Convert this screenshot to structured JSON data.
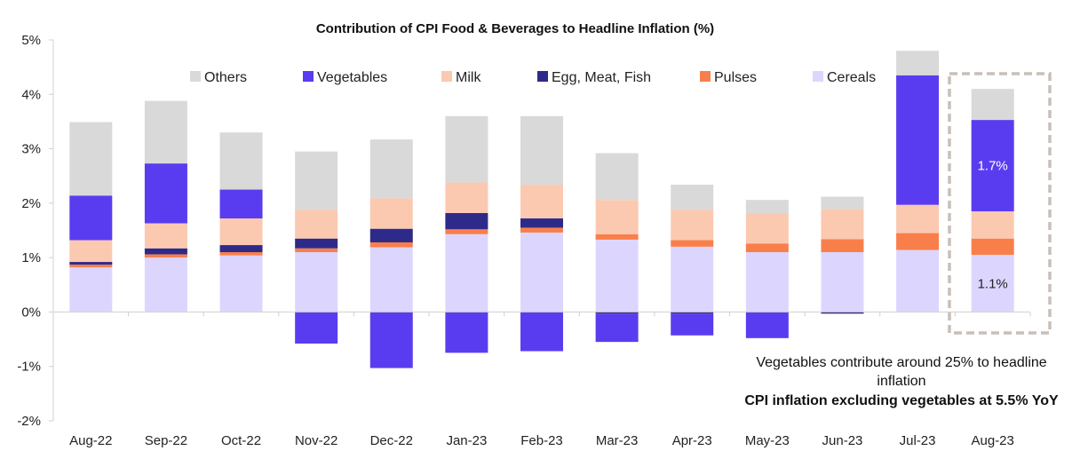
{
  "chart_data": {
    "type": "bar",
    "stacked": true,
    "title": "Contribution of CPI Food & Beverages to Headline Inflation (%)",
    "xlabel": "",
    "ylabel": "",
    "ylim": [
      -2,
      5
    ],
    "yticks": [
      -2,
      -1,
      0,
      1,
      2,
      3,
      4,
      5
    ],
    "ytick_labels": [
      "-2%",
      "-1%",
      "0%",
      "1%",
      "2%",
      "3%",
      "4%",
      "5%"
    ],
    "legend_position": "top",
    "grid": false,
    "categories": [
      "Aug-22",
      "Sep-22",
      "Oct-22",
      "Nov-22",
      "Dec-22",
      "Jan-23",
      "Feb-23",
      "Mar-23",
      "Apr-23",
      "May-23",
      "Jun-23",
      "Jul-23",
      "Aug-23"
    ],
    "series": [
      {
        "name": "Cereals",
        "color": "#dcd6ff",
        "values": [
          0.82,
          1.0,
          1.04,
          1.1,
          1.19,
          1.43,
          1.46,
          1.33,
          1.2,
          1.1,
          1.1,
          1.14,
          1.05
        ]
      },
      {
        "name": "Pulses",
        "color": "#f97f4a",
        "values": [
          0.05,
          0.06,
          0.06,
          0.07,
          0.09,
          0.09,
          0.09,
          0.1,
          0.12,
          0.16,
          0.24,
          0.31,
          0.3
        ]
      },
      {
        "name": "Egg, Meat, Fish",
        "color": "#2e2a8a",
        "values": [
          0.05,
          0.11,
          0.13,
          0.18,
          0.25,
          0.3,
          0.17,
          -0.03,
          -0.03,
          0.0,
          -0.03,
          0.0,
          0.0
        ]
      },
      {
        "name": "Milk",
        "color": "#fbc9b0",
        "values": [
          0.4,
          0.46,
          0.49,
          0.53,
          0.56,
          0.56,
          0.62,
          0.63,
          0.56,
          0.55,
          0.55,
          0.52,
          0.5
        ]
      },
      {
        "name": "Vegetables",
        "color": "#5a3cf0",
        "values": [
          0.82,
          1.1,
          0.53,
          -0.58,
          -1.03,
          -0.75,
          -0.72,
          -0.52,
          -0.4,
          -0.48,
          0.0,
          2.38,
          1.68
        ]
      },
      {
        "name": "Others",
        "color": "#d9d9d9",
        "values": [
          1.35,
          1.15,
          1.05,
          1.07,
          1.08,
          1.22,
          1.26,
          0.86,
          0.46,
          0.25,
          0.23,
          0.45,
          0.57
        ]
      }
    ],
    "legend_order": [
      "Others",
      "Vegetables",
      "Milk",
      "Egg, Meat, Fish",
      "Pulses",
      "Cereals"
    ],
    "data_labels": [
      {
        "category": "Aug-23",
        "series": "Vegetables",
        "text": "1.7%",
        "color": "#ffffff"
      },
      {
        "category": "Aug-23",
        "series": "Cereals",
        "text": "1.1%",
        "color": "#222222"
      }
    ],
    "highlight_category": "Aug-23",
    "highlight_color": "#c9bfb8",
    "annotations": {
      "line1": "Vegetables contribute around 25% to headline",
      "line2": "inflation",
      "line3": "CPI inflation excluding vegetables at 5.5% YoY"
    }
  }
}
